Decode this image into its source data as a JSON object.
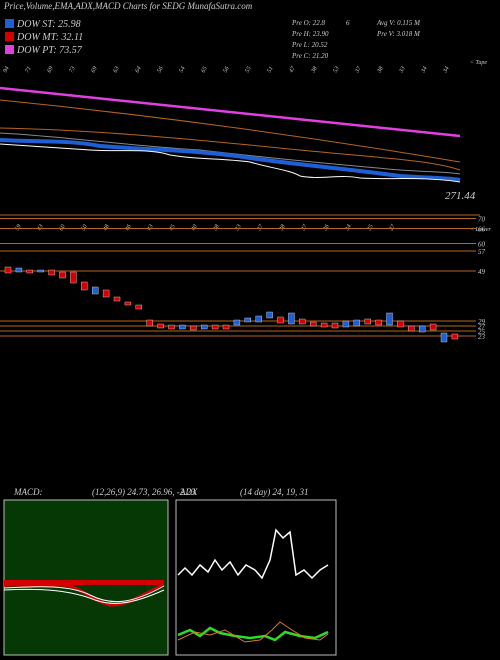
{
  "header": {
    "title": "Price,Volume,EMA,ADX,MACD Charts for SEDG MunafaSutra.com"
  },
  "legend": [
    {
      "label": "DOW ST: 25.98",
      "color": "#1f5fd6"
    },
    {
      "label": "DOW MT: 32.11",
      "color": "#d40000"
    },
    {
      "label": "DOW PT: 73.57",
      "color": "#e040e0"
    }
  ],
  "info": [
    "Pre  O: 22.8",
    "6",
    "Avg V: 0.115 M",
    "Pre  H: 23.90",
    "Pre  V: 3.018 M",
    "Pre  L: 20.52",
    "Pre  C: 21.20"
  ],
  "upper_tag": "< Tape",
  "lower_tag": "< Lower",
  "top_ticks": [
    "94",
    "71",
    "69",
    "73",
    "69",
    "63",
    "64",
    "56",
    "54",
    "65",
    "56",
    "55",
    "51",
    "47",
    "38",
    "53",
    "37",
    "38",
    "33",
    "34",
    "34"
  ],
  "mid_ticks": [
    "59",
    "43",
    "60",
    "50",
    "48",
    "46",
    "43",
    "45",
    "40",
    "38",
    "33",
    "37",
    "38",
    "37",
    "36",
    "34",
    "35",
    "27"
  ],
  "price_label": "271.44",
  "chart_data": {
    "type": "candlestick",
    "open": [
      50.6,
      48.6,
      49.4,
      48.6,
      49.4,
      48.6,
      48.6,
      44.6,
      39.8,
      41.4,
      38.6,
      36.6,
      35.4,
      29.4,
      27.8,
      27.4,
      25.8,
      27.0,
      25.8,
      27.4,
      27.4,
      27.4,
      28.6,
      28.6,
      30.2,
      30.6,
      27.8,
      29.8,
      28.6,
      28.2,
      28.2,
      26.6,
      27.0,
      29.8,
      29.4,
      27.4,
      29.0,
      27.0,
      24.6,
      27.8,
      20.6,
      23.8
    ],
    "close": [
      48.2,
      50.2,
      48.2,
      49.4,
      47.4,
      46.2,
      44.2,
      41.4,
      42.6,
      38.6,
      37.0,
      35.4,
      33.8,
      27.0,
      26.2,
      25.8,
      27.4,
      25.4,
      27.4,
      25.8,
      25.8,
      29.4,
      30.2,
      31.0,
      32.6,
      28.2,
      32.2,
      27.8,
      27.0,
      26.6,
      26.2,
      29.0,
      29.4,
      27.8,
      27.4,
      32.2,
      26.6,
      25.0,
      27.0,
      25.4,
      24.2,
      21.8
    ],
    "up_color": "#1f5fd6",
    "down_color": "#d40000",
    "ylim": [
      19.4,
      71.4
    ],
    "yticks": [
      70,
      66,
      60,
      57,
      49,
      29,
      27,
      25,
      23
    ]
  },
  "macd": {
    "label": "MACD:",
    "params": "(12,26,9) 24.73, 26.96, -2.23"
  },
  "adx": {
    "label": "ADX",
    "params": "(14 day) 24, 19, 31"
  }
}
